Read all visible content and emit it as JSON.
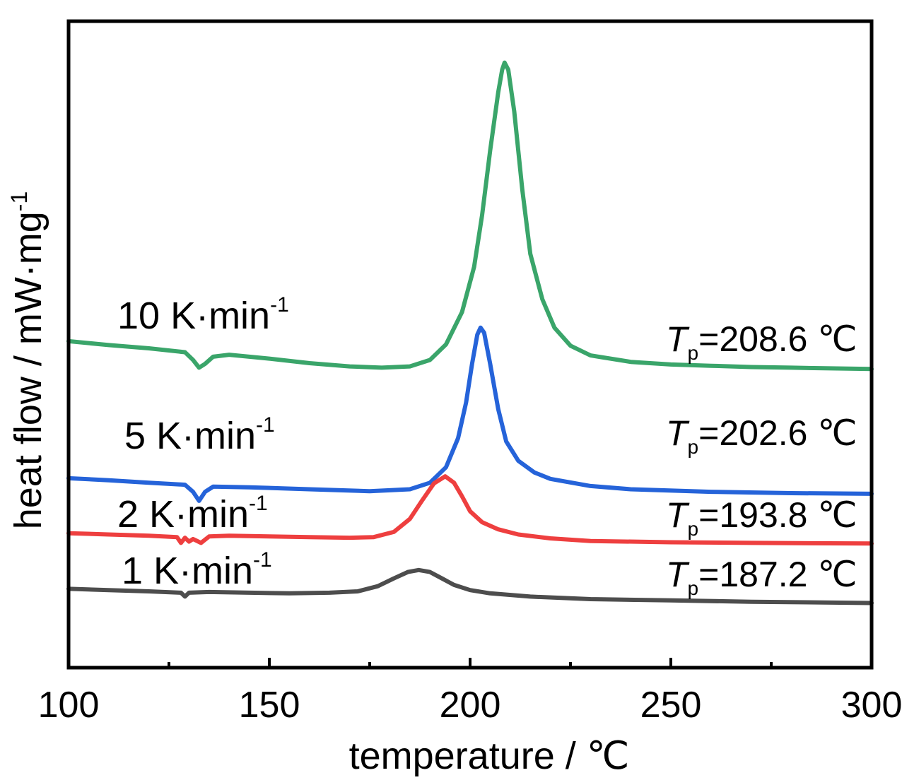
{
  "chart_data": {
    "type": "line",
    "xlabel": "temperature / ℃",
    "ylabel_main": "heat flow / mW·mg",
    "ylabel_sup": "-1",
    "xlim": [
      100,
      300
    ],
    "ylim": [
      0,
      100
    ],
    "x_ticks": [
      100,
      150,
      200,
      250,
      300
    ],
    "x_ticks_minor": [
      125,
      175,
      225,
      275
    ],
    "x_tick_labels": [
      "100",
      "150",
      "200",
      "250",
      "300"
    ],
    "grid": false,
    "legend": "none",
    "series": [
      {
        "rate": "10 K·min",
        "rate_sup": "-1",
        "tp_symbol": "T",
        "tp_sub": "p",
        "tp_value": "=208.6 ℃",
        "color": "#3aa56a",
        "points": [
          [
            100,
            50.5
          ],
          [
            110,
            49.9
          ],
          [
            120,
            49.4
          ],
          [
            129,
            48.8
          ],
          [
            131,
            47.6
          ],
          [
            132.5,
            46.4
          ],
          [
            134,
            47.0
          ],
          [
            136,
            48.1
          ],
          [
            140,
            48.4
          ],
          [
            150,
            47.8
          ],
          [
            160,
            47.1
          ],
          [
            170,
            46.6
          ],
          [
            178,
            46.4
          ],
          [
            185,
            46.6
          ],
          [
            190,
            47.6
          ],
          [
            194,
            50.0
          ],
          [
            198,
            55.0
          ],
          [
            201,
            62.0
          ],
          [
            203,
            70.0
          ],
          [
            205,
            80.0
          ],
          [
            207,
            89.0
          ],
          [
            208,
            92.5
          ],
          [
            208.6,
            93.6
          ],
          [
            209.5,
            92.5
          ],
          [
            211,
            86.0
          ],
          [
            213,
            74.0
          ],
          [
            215,
            64.0
          ],
          [
            218,
            57.0
          ],
          [
            221,
            52.6
          ],
          [
            225,
            49.8
          ],
          [
            230,
            48.3
          ],
          [
            240,
            47.3
          ],
          [
            250,
            46.9
          ],
          [
            260,
            46.7
          ],
          [
            270,
            46.5
          ],
          [
            280,
            46.4
          ],
          [
            290,
            46.3
          ],
          [
            300,
            46.2
          ]
        ]
      },
      {
        "rate": "5 K·min",
        "rate_sup": "-1",
        "tp_symbol": "T",
        "tp_sub": "p",
        "tp_value": "=202.6 ℃",
        "color": "#2563d9",
        "points": [
          [
            100,
            29.3
          ],
          [
            110,
            29.0
          ],
          [
            120,
            28.6
          ],
          [
            129,
            28.3
          ],
          [
            131,
            27.2
          ],
          [
            132.5,
            25.8
          ],
          [
            134,
            27.2
          ],
          [
            136,
            28.0
          ],
          [
            145,
            27.9
          ],
          [
            160,
            27.6
          ],
          [
            175,
            27.3
          ],
          [
            185,
            27.6
          ],
          [
            190,
            28.6
          ],
          [
            194,
            31.0
          ],
          [
            197,
            35.5
          ],
          [
            199,
            41.0
          ],
          [
            200.5,
            47.0
          ],
          [
            201.8,
            51.5
          ],
          [
            202.6,
            52.6
          ],
          [
            203.5,
            51.8
          ],
          [
            205,
            47.0
          ],
          [
            207,
            40.0
          ],
          [
            209,
            35.0
          ],
          [
            212,
            32.0
          ],
          [
            216,
            30.2
          ],
          [
            220,
            29.2
          ],
          [
            230,
            28.1
          ],
          [
            240,
            27.6
          ],
          [
            260,
            27.2
          ],
          [
            280,
            27.0
          ],
          [
            300,
            26.9
          ]
        ]
      },
      {
        "rate": "2 K·min",
        "rate_sup": "-1",
        "tp_symbol": "T",
        "tp_sub": "p",
        "tp_value": "=193.8 ℃",
        "color": "#ee3f3f",
        "points": [
          [
            100,
            20.8
          ],
          [
            110,
            20.6
          ],
          [
            120,
            20.4
          ],
          [
            127,
            20.2
          ],
          [
            128,
            19.3
          ],
          [
            129,
            20.1
          ],
          [
            130,
            19.5
          ],
          [
            131,
            19.9
          ],
          [
            133,
            19.3
          ],
          [
            135,
            20.3
          ],
          [
            140,
            20.4
          ],
          [
            150,
            20.3
          ],
          [
            160,
            20.2
          ],
          [
            170,
            20.1
          ],
          [
            176,
            20.2
          ],
          [
            181,
            21.0
          ],
          [
            185,
            23.0
          ],
          [
            188,
            25.8
          ],
          [
            191,
            28.5
          ],
          [
            193.8,
            29.6
          ],
          [
            196,
            28.6
          ],
          [
            198,
            26.5
          ],
          [
            200,
            24.2
          ],
          [
            203,
            22.5
          ],
          [
            207,
            21.4
          ],
          [
            212,
            20.6
          ],
          [
            220,
            20.0
          ],
          [
            230,
            19.6
          ],
          [
            250,
            19.4
          ],
          [
            270,
            19.3
          ],
          [
            300,
            19.2
          ]
        ]
      },
      {
        "rate": "1 K·min",
        "rate_sup": "-1",
        "tp_symbol": "T",
        "tp_sub": "p",
        "tp_value": "=187.2 ℃",
        "color": "#4d4d4d",
        "points": [
          [
            100,
            12.2
          ],
          [
            110,
            12.0
          ],
          [
            120,
            11.8
          ],
          [
            128,
            11.6
          ],
          [
            129,
            11.0
          ],
          [
            130,
            11.6
          ],
          [
            135,
            11.7
          ],
          [
            145,
            11.6
          ],
          [
            155,
            11.5
          ],
          [
            165,
            11.6
          ],
          [
            172,
            11.8
          ],
          [
            177,
            12.6
          ],
          [
            181,
            13.8
          ],
          [
            184.5,
            14.8
          ],
          [
            187.2,
            15.1
          ],
          [
            190,
            14.8
          ],
          [
            193,
            13.8
          ],
          [
            196,
            12.8
          ],
          [
            200,
            12.0
          ],
          [
            205,
            11.5
          ],
          [
            215,
            11.0
          ],
          [
            230,
            10.6
          ],
          [
            250,
            10.4
          ],
          [
            270,
            10.2
          ],
          [
            300,
            10.0
          ]
        ]
      }
    ]
  }
}
